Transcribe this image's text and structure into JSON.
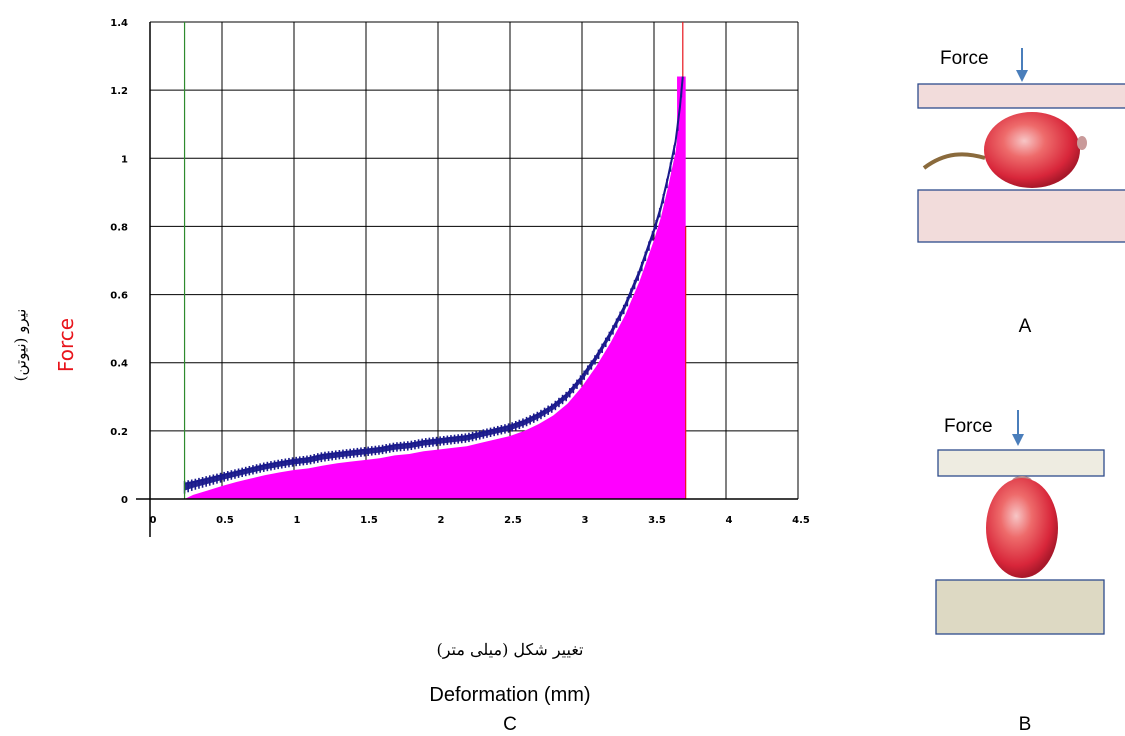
{
  "chart_data": {
    "type": "area",
    "xlabel_fa": "تغییر شکل (میلی متر)",
    "xlabel": "Deformation (mm)",
    "ylabel_fa": "نیرو (نیوتن)",
    "ylabel": "Force",
    "xlim": [
      0,
      4.5
    ],
    "ylim": [
      0,
      1.4
    ],
    "x_ticks": [
      "0",
      "0.5",
      "1",
      "1.5",
      "2",
      "2.5",
      "3",
      "3.5",
      "4",
      "4.5"
    ],
    "y_ticks": [
      "0",
      "0.2",
      "0.4",
      "0.6",
      "0.8",
      "1",
      "1.2",
      "1.4"
    ],
    "grid": true,
    "colors": {
      "fill": "#ff00ff",
      "line": "#1a1a8c",
      "start_marker": "#2e8b2e",
      "end_marker": "#e8141b"
    },
    "series": [
      {
        "x": [
          0.24,
          0.3,
          0.4,
          0.5,
          0.6,
          0.7,
          0.8,
          0.9,
          1.0,
          1.1,
          1.2,
          1.3,
          1.4,
          1.5,
          1.6,
          1.7,
          1.8,
          1.9,
          2.0,
          2.1,
          2.2,
          2.3,
          2.4,
          2.5,
          2.6,
          2.7,
          2.8,
          2.9,
          3.0,
          3.1,
          3.2,
          3.3,
          3.4,
          3.5,
          3.55,
          3.6,
          3.65,
          3.68,
          3.7
        ],
        "upper": [
          0.045,
          0.05,
          0.06,
          0.07,
          0.08,
          0.09,
          0.1,
          0.108,
          0.115,
          0.12,
          0.13,
          0.135,
          0.14,
          0.145,
          0.15,
          0.158,
          0.162,
          0.17,
          0.175,
          0.18,
          0.185,
          0.195,
          0.205,
          0.215,
          0.23,
          0.25,
          0.275,
          0.31,
          0.36,
          0.42,
          0.49,
          0.57,
          0.67,
          0.79,
          0.86,
          0.95,
          1.05,
          1.15,
          1.24
        ],
        "lower": [
          0.0,
          0.012,
          0.025,
          0.038,
          0.05,
          0.06,
          0.07,
          0.078,
          0.085,
          0.09,
          0.098,
          0.105,
          0.11,
          0.115,
          0.12,
          0.128,
          0.132,
          0.14,
          0.145,
          0.15,
          0.155,
          0.165,
          0.175,
          0.185,
          0.2,
          0.22,
          0.245,
          0.28,
          0.33,
          0.39,
          0.46,
          0.54,
          0.64,
          0.76,
          0.83,
          0.92,
          1.02,
          1.12,
          1.22
        ]
      }
    ],
    "markers": {
      "start_x": 0.24,
      "end_x": 3.72
    }
  },
  "panels": {
    "a": {
      "force_label": "Force",
      "caption": "A"
    },
    "b": {
      "force_label": "Force",
      "caption": "B"
    },
    "c": {
      "caption": "C"
    }
  }
}
